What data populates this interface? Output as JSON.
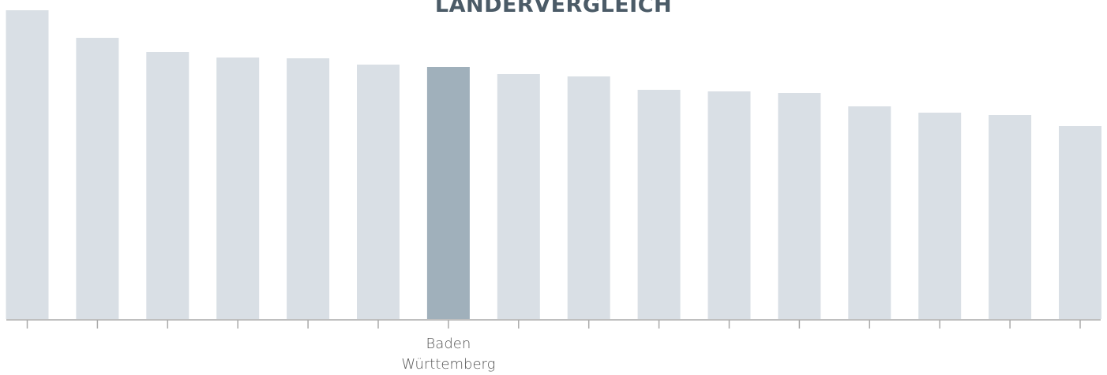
{
  "chart_data": {
    "type": "bar",
    "title": "LÄNDERVERGLEICH",
    "categories": [
      null,
      null,
      null,
      null,
      null,
      null,
      "Baden\nWürttemberg",
      null,
      null,
      null,
      null,
      null,
      null,
      null,
      null,
      null
    ],
    "values": [
      392,
      357,
      339,
      332,
      331,
      323,
      320,
      311,
      308,
      291,
      289,
      287,
      270,
      262,
      259,
      245
    ],
    "colors": [
      "#d9dfe5",
      "#d9dfe5",
      "#d9dfe5",
      "#d9dfe5",
      "#d9dfe5",
      "#d9dfe5",
      "#a0b0bb",
      "#d9dfe5",
      "#d9dfe5",
      "#d9dfe5",
      "#d9dfe5",
      "#d9dfe5",
      "#d9dfe5",
      "#d9dfe5",
      "#d9dfe5",
      "#d9dfe5"
    ],
    "ylim": [
      0,
      392
    ]
  }
}
